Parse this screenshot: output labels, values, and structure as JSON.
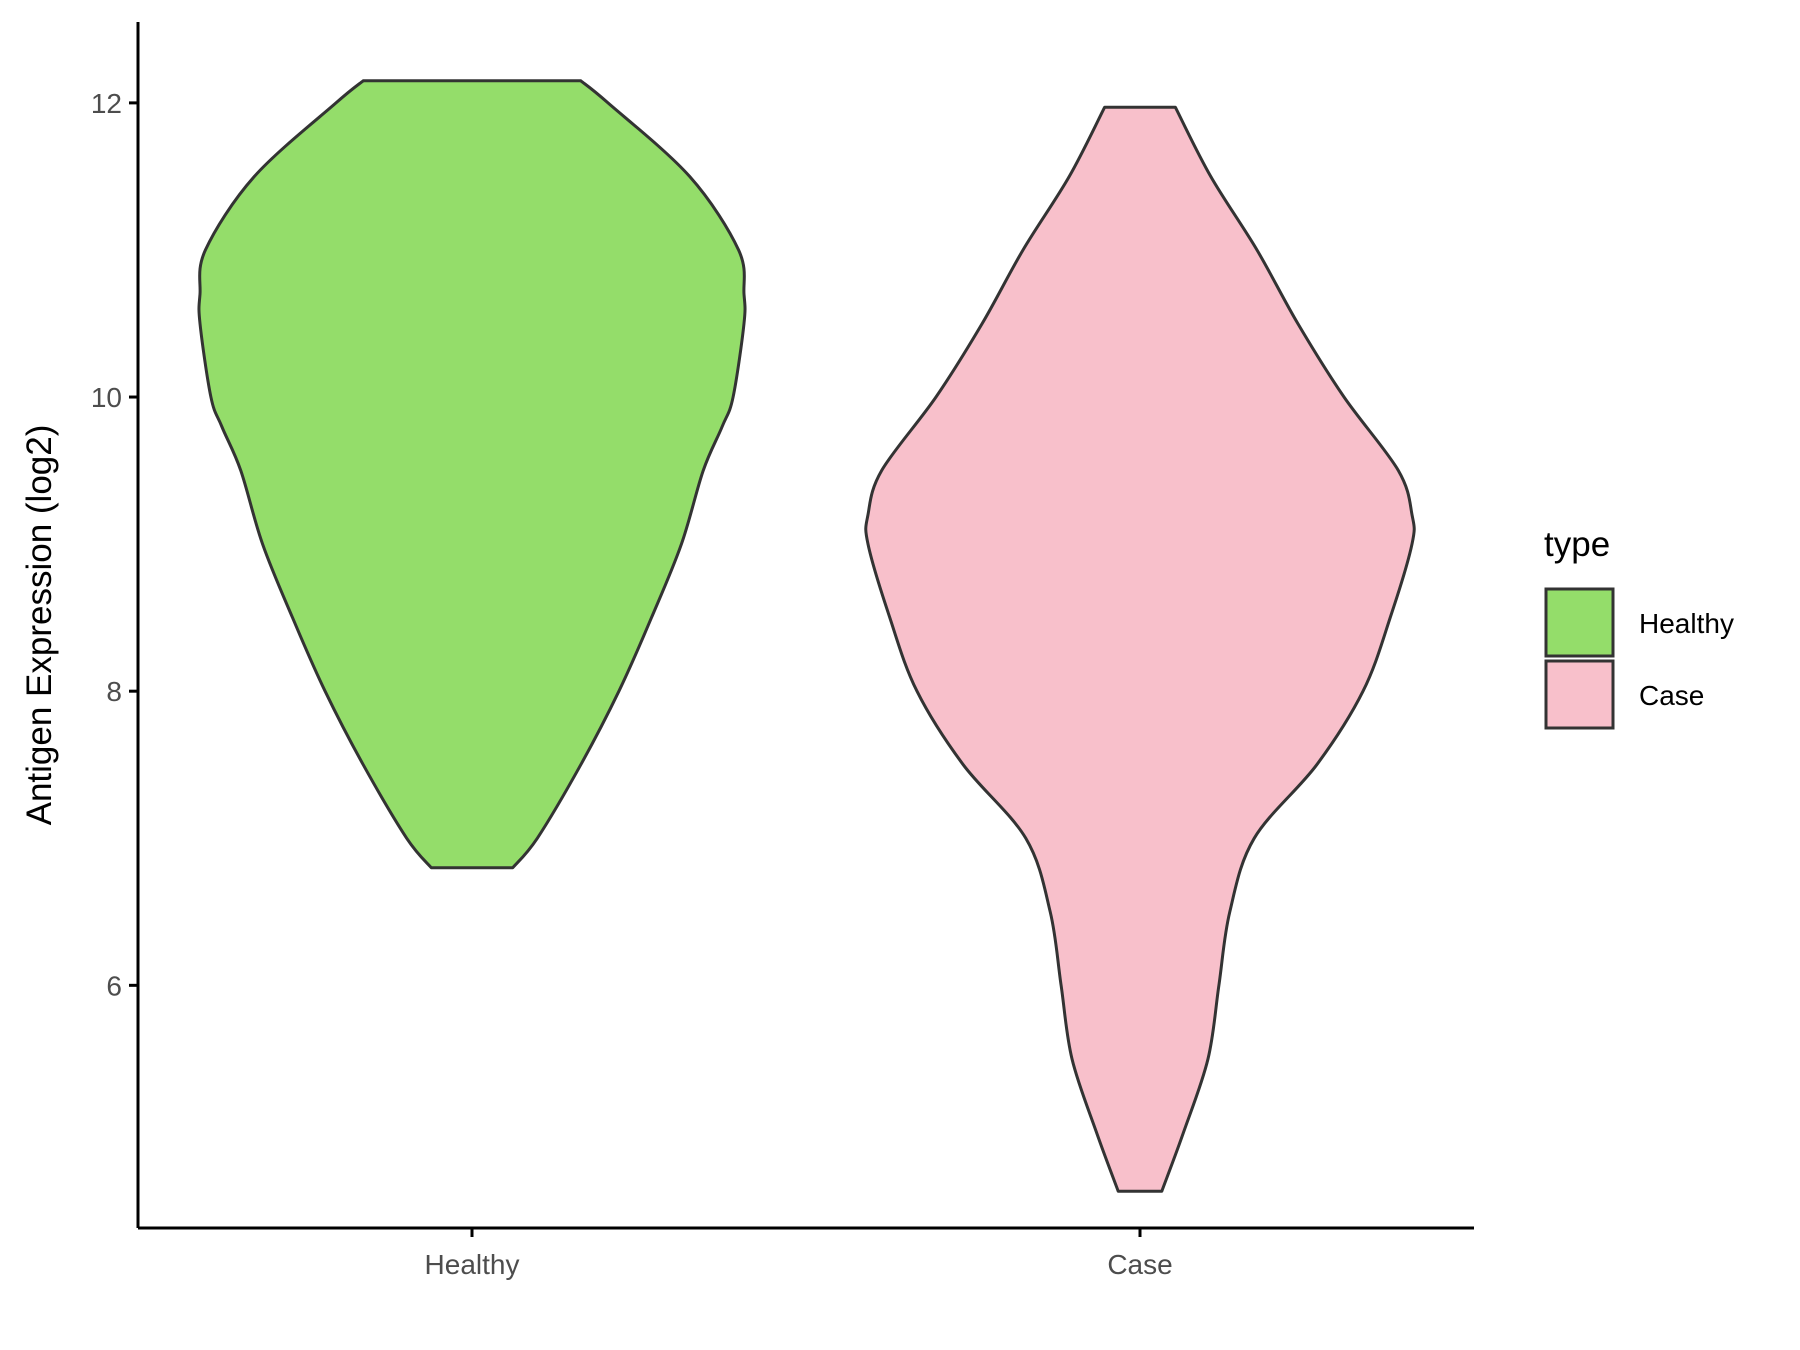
{
  "chart_data": {
    "type": "violin",
    "title": "",
    "xlabel": "",
    "ylabel": "Antigen Expression (log2)",
    "ylim": [
      4.35,
      12.55
    ],
    "y_ticks": [
      "6",
      "8",
      "10",
      "12"
    ],
    "categories": [
      "Healthy",
      "Case"
    ],
    "grid": false,
    "legend": {
      "title": "type",
      "position": "right",
      "entries": [
        "Healthy",
        "Case"
      ]
    },
    "series": [
      {
        "name": "Healthy",
        "color": "#94dd6a",
        "min": 6.8,
        "max": 12.15,
        "density_profile": [
          [
            6.8,
            0.15
          ],
          [
            7.0,
            0.24
          ],
          [
            7.5,
            0.4
          ],
          [
            8.0,
            0.54
          ],
          [
            8.5,
            0.66
          ],
          [
            9.0,
            0.77
          ],
          [
            9.5,
            0.85
          ],
          [
            9.8,
            0.92
          ],
          [
            10.0,
            0.96
          ],
          [
            10.5,
            1.0
          ],
          [
            10.7,
            1.0
          ],
          [
            11.0,
            0.98
          ],
          [
            11.5,
            0.8
          ],
          [
            12.0,
            0.5
          ],
          [
            12.15,
            0.4
          ]
        ]
      },
      {
        "name": "Case",
        "color": "#f8c0cb",
        "min": 4.6,
        "max": 11.97,
        "density_profile": [
          [
            4.6,
            0.08
          ],
          [
            5.0,
            0.16
          ],
          [
            5.5,
            0.25
          ],
          [
            6.0,
            0.29
          ],
          [
            6.5,
            0.33
          ],
          [
            7.0,
            0.42
          ],
          [
            7.5,
            0.65
          ],
          [
            8.0,
            0.82
          ],
          [
            8.5,
            0.92
          ],
          [
            9.0,
            1.0
          ],
          [
            9.2,
            1.0
          ],
          [
            9.5,
            0.95
          ],
          [
            10.0,
            0.75
          ],
          [
            10.5,
            0.58
          ],
          [
            11.0,
            0.43
          ],
          [
            11.5,
            0.26
          ],
          [
            11.97,
            0.13
          ]
        ]
      }
    ]
  }
}
